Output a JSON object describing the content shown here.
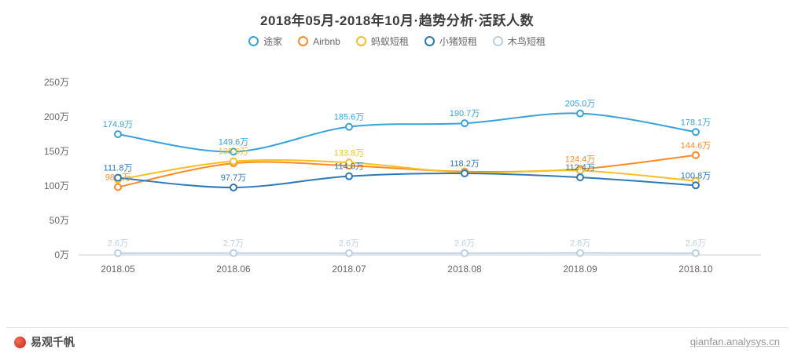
{
  "title": "2018年05月-2018年10月·趋势分析·活跃人数",
  "footer": {
    "brand": "易观千帆",
    "site": "qianfan.analysys.cn"
  },
  "chart_data": {
    "type": "line",
    "title": "2018年05月-2018年10月·趋势分析·活跃人数",
    "x_categories": [
      "2018.05",
      "2018.06",
      "2018.07",
      "2018.08",
      "2018.09",
      "2018.10"
    ],
    "ylim": [
      0,
      250
    ],
    "yticks": [
      {
        "value": 0,
        "label": "0万"
      },
      {
        "value": 50,
        "label": "50万"
      },
      {
        "value": 100,
        "label": "100万"
      },
      {
        "value": 150,
        "label": "150万"
      },
      {
        "value": 200,
        "label": "200万"
      },
      {
        "value": 250,
        "label": "250万"
      }
    ],
    "grid": false,
    "legend_position": "top",
    "unit": "万",
    "series": [
      {
        "key": "tujia",
        "name": "途家",
        "color": "#38a2dc",
        "values": [
          174.9,
          149.6,
          185.6,
          190.7,
          205.0,
          178.1
        ],
        "labels": [
          "174.9万",
          "149.6万",
          "185.6万",
          "190.7万",
          "205.0万",
          "178.1万"
        ]
      },
      {
        "key": "airbnb",
        "name": "Airbnb",
        "color": "#ff8a26",
        "values": [
          98.3,
          132.8,
          129.3,
          120.8,
          124.4,
          144.6
        ],
        "labels": [
          "98.3万",
          null,
          null,
          null,
          "124.4万",
          "144.6万"
        ]
      },
      {
        "key": "mayi-duanzu",
        "name": "蚂蚁短租",
        "color": "#f6c022",
        "values": [
          109.2,
          135.6,
          133.8,
          119.3,
          122.1,
          107.2
        ],
        "labels": [
          null,
          "135.6万",
          "133.8万",
          null,
          null,
          null
        ]
      },
      {
        "key": "xiaozhu-duanzu",
        "name": "小猪短租",
        "color": "#2e78b8",
        "values": [
          111.8,
          97.7,
          114.0,
          118.2,
          112.4,
          100.8
        ],
        "labels": [
          "111.8万",
          "97.7万",
          "114.0万",
          "118.2万",
          "112.4万",
          "100.8万"
        ]
      },
      {
        "key": "muniao-duanzu",
        "name": "木鸟短租",
        "color": "#b9cfe2",
        "values": [
          2.6,
          2.7,
          2.6,
          2.6,
          2.8,
          2.6
        ],
        "labels": [
          "2.6万",
          "2.7万",
          "2.6万",
          "2.6万",
          "2.8万",
          "2.6万"
        ]
      }
    ]
  }
}
